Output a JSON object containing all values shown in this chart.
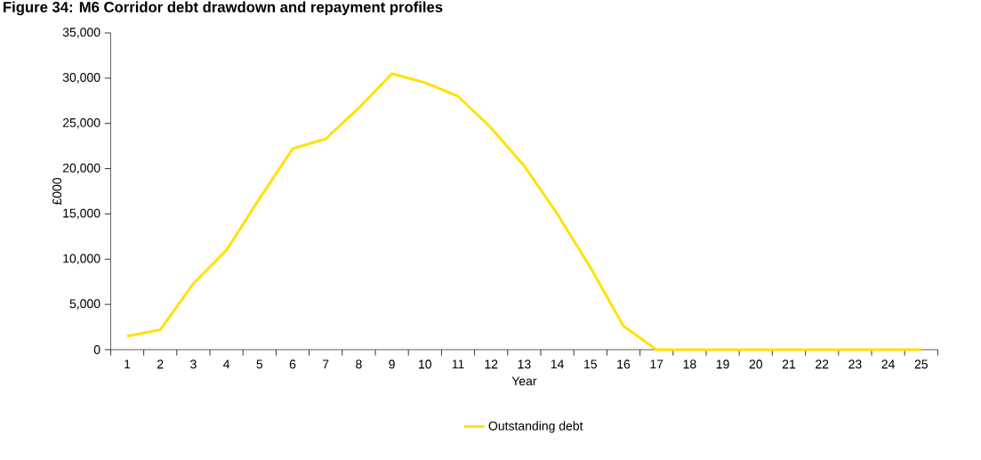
{
  "chart_data": {
    "type": "line",
    "title": "Figure 34: M6 Corridor debt drawdown and repayment profiles",
    "xlabel": "Year",
    "ylabel": "£000",
    "categories": [
      "1",
      "2",
      "3",
      "4",
      "5",
      "6",
      "7",
      "8",
      "9",
      "10",
      "11",
      "12",
      "13",
      "14",
      "15",
      "16",
      "17",
      "18",
      "19",
      "20",
      "21",
      "22",
      "23",
      "24",
      "25"
    ],
    "series": [
      {
        "name": "Outstanding debt",
        "color": "#ffe100",
        "values": [
          1500,
          2200,
          7300,
          11000,
          16700,
          22200,
          23300,
          26700,
          30500,
          29500,
          28000,
          24500,
          20300,
          15000,
          9100,
          2600,
          0,
          0,
          0,
          0,
          0,
          0,
          0,
          0,
          0
        ]
      }
    ],
    "ylim": [
      0,
      35000
    ],
    "yticks": [
      {
        "value": 0,
        "label": "0"
      },
      {
        "value": 5000,
        "label": "5,000"
      },
      {
        "value": 10000,
        "label": "10,000"
      },
      {
        "value": 15000,
        "label": "15,000"
      },
      {
        "value": 20000,
        "label": "20,000"
      },
      {
        "value": 25000,
        "label": "25,000"
      },
      {
        "value": 30000,
        "label": "30,000"
      },
      {
        "value": 35000,
        "label": "35,000"
      }
    ],
    "grid": false,
    "legend": "bottom"
  }
}
